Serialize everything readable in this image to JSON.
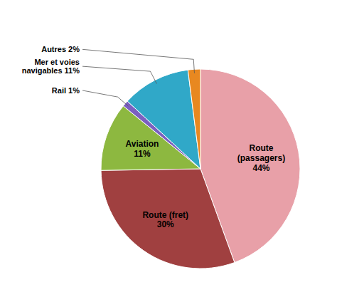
{
  "chart_data": {
    "type": "pie",
    "categories": [
      "Route\n(passagers)\n44%",
      "Route (fret)\n30%",
      "Aviation\n11%",
      "Rail 1%",
      "Mer et voies\nnavigables 11%",
      "Autres 2%"
    ],
    "values": [
      44,
      30,
      11,
      1,
      11,
      2
    ],
    "colors": [
      "#E8A0A8",
      "#A04040",
      "#8DB840",
      "#7B60C0",
      "#30A8C8",
      "#E88820"
    ]
  }
}
